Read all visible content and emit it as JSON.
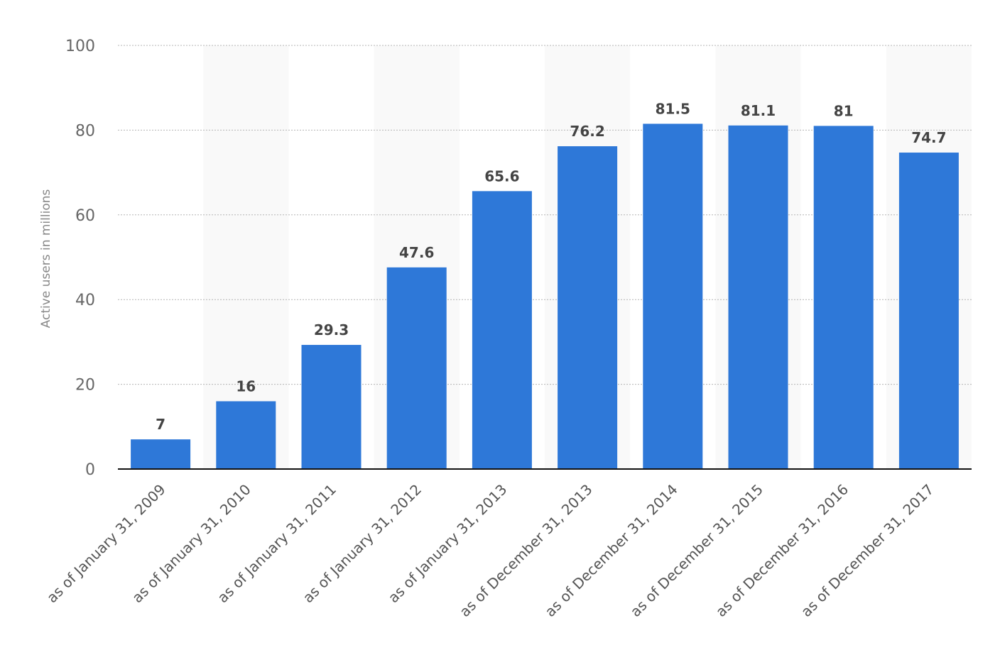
{
  "chart_data": {
    "type": "bar",
    "title": "",
    "xlabel": "",
    "ylabel": "Active users in millions",
    "ylim": [
      0,
      100
    ],
    "yticks": [
      0,
      20,
      40,
      60,
      80,
      100
    ],
    "grid": true,
    "legend": "none",
    "bar_color": "#2e78d8",
    "band_color": "#f9f9f9",
    "categories": [
      "as of January 31, 2009",
      "as of January 31, 2010",
      "as of January 31, 2011",
      "as of January 31, 2012",
      "as of January 31, 2013",
      "as of December 31, 2013",
      "as of December 31, 2014",
      "as of December 31, 2015",
      "as of December 31, 2016",
      "as of December 31, 2017"
    ],
    "values": [
      7,
      16,
      29.3,
      47.6,
      65.6,
      76.2,
      81.5,
      81.1,
      81,
      74.7
    ],
    "value_labels": [
      "7",
      "16",
      "29.3",
      "47.6",
      "65.6",
      "76.2",
      "81.5",
      "81.1",
      "81",
      "74.7"
    ]
  }
}
